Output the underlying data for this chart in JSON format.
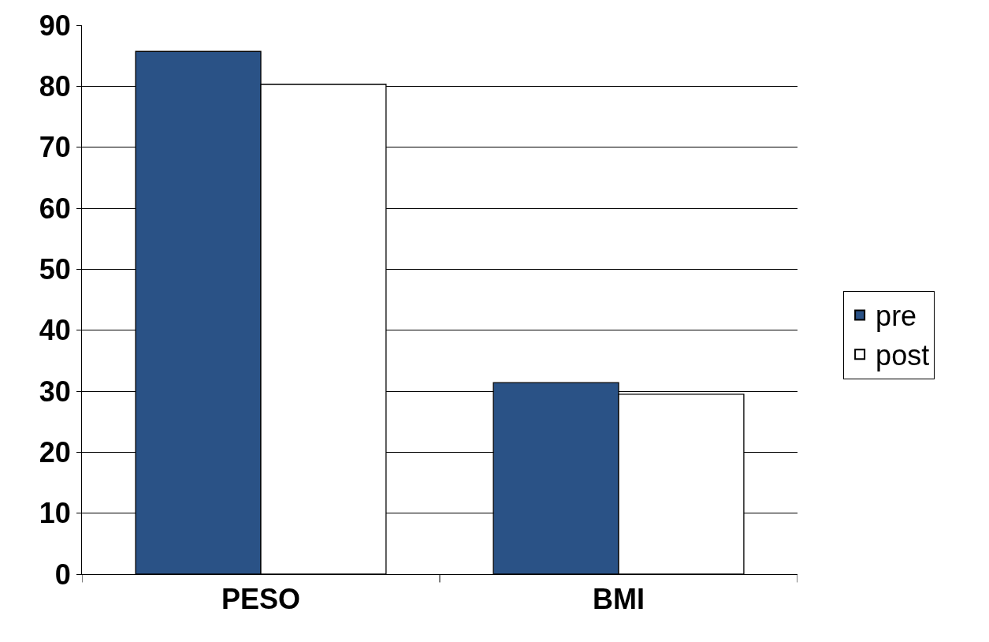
{
  "chart_data": {
    "type": "bar",
    "categories": [
      "PESO",
      "BMI"
    ],
    "series": [
      {
        "name": "pre",
        "color": "#2a5286",
        "values": [
          85.7,
          31.4
        ]
      },
      {
        "name": "post",
        "color": "#ffffff",
        "values": [
          80.3,
          29.5
        ]
      }
    ],
    "ylim": [
      0,
      90
    ],
    "yticks": [
      0,
      10,
      20,
      30,
      40,
      50,
      60,
      70,
      80,
      90
    ],
    "grid": "y",
    "legend": "right"
  }
}
